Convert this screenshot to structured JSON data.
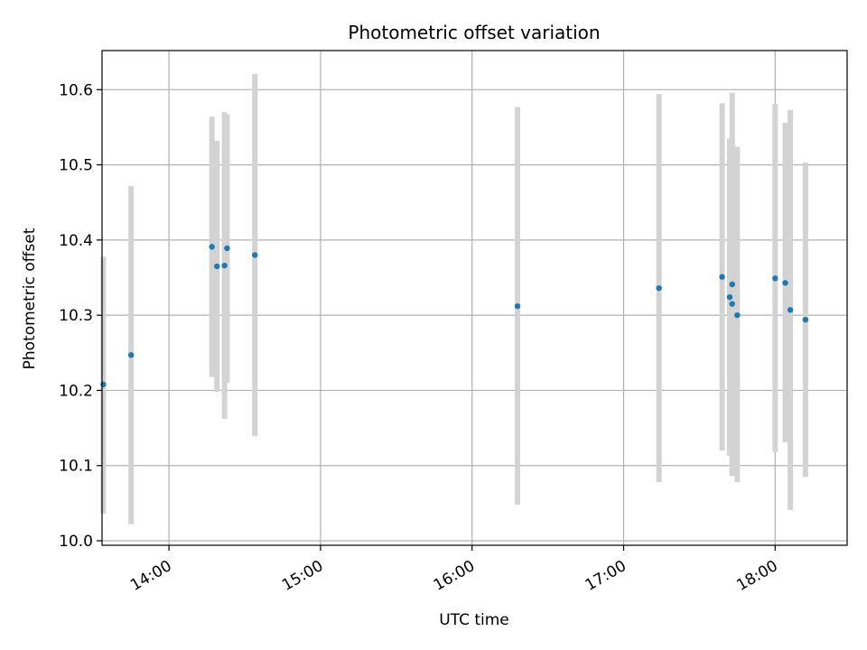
{
  "chart_data": {
    "type": "scatter",
    "title": "Photometric offset variation",
    "xlabel": "UTC time",
    "ylabel": "Photometric offset",
    "x_ticks": [
      "14:00",
      "15:00",
      "16:00",
      "17:00",
      "18:00"
    ],
    "x_tick_values": [
      "14:00",
      "15:00",
      "16:00",
      "17:00",
      "18:00"
    ],
    "xlim": [
      "13:34",
      "18:28"
    ],
    "y_ticks": [
      "10.0",
      "10.1",
      "10.2",
      "10.3",
      "10.4",
      "10.5",
      "10.6"
    ],
    "ylim": [
      9.994,
      10.652
    ],
    "grid": true,
    "colors": {
      "points": "#1f77b4",
      "errorbars": "#d3d3d3",
      "grid": "#b0b0b0"
    },
    "points": [
      {
        "x": "13:34",
        "y": 10.208,
        "err_low": 10.036,
        "err_high": 10.378
      },
      {
        "x": "13:45",
        "y": 10.247,
        "err_low": 10.022,
        "err_high": 10.472
      },
      {
        "x": "14:17",
        "y": 10.391,
        "err_low": 10.218,
        "err_high": 10.564
      },
      {
        "x": "14:19",
        "y": 10.365,
        "err_low": 10.198,
        "err_high": 10.532
      },
      {
        "x": "14:22",
        "y": 10.366,
        "err_low": 10.162,
        "err_high": 10.57
      },
      {
        "x": "14:23",
        "y": 10.389,
        "err_low": 10.21,
        "err_high": 10.567
      },
      {
        "x": "14:34",
        "y": 10.38,
        "err_low": 10.139,
        "err_high": 10.621
      },
      {
        "x": "16:18",
        "y": 10.312,
        "err_low": 10.048,
        "err_high": 10.577
      },
      {
        "x": "17:14",
        "y": 10.336,
        "err_low": 10.078,
        "err_high": 10.594
      },
      {
        "x": "17:39",
        "y": 10.351,
        "err_low": 10.12,
        "err_high": 10.582
      },
      {
        "x": "17:42",
        "y": 10.324,
        "err_low": 10.113,
        "err_high": 10.535
      },
      {
        "x": "17:43",
        "y": 10.315,
        "err_low": 10.087,
        "err_high": 10.53
      },
      {
        "x": "17:43",
        "y": 10.341,
        "err_low": 10.086,
        "err_high": 10.596
      },
      {
        "x": "17:45",
        "y": 10.3,
        "err_low": 10.078,
        "err_high": 10.524
      },
      {
        "x": "18:00",
        "y": 10.349,
        "err_low": 10.118,
        "err_high": 10.581
      },
      {
        "x": "18:04",
        "y": 10.343,
        "err_low": 10.131,
        "err_high": 10.556
      },
      {
        "x": "18:06",
        "y": 10.307,
        "err_low": 10.041,
        "err_high": 10.573
      },
      {
        "x": "18:12",
        "y": 10.294,
        "err_low": 10.085,
        "err_high": 10.503
      }
    ]
  }
}
